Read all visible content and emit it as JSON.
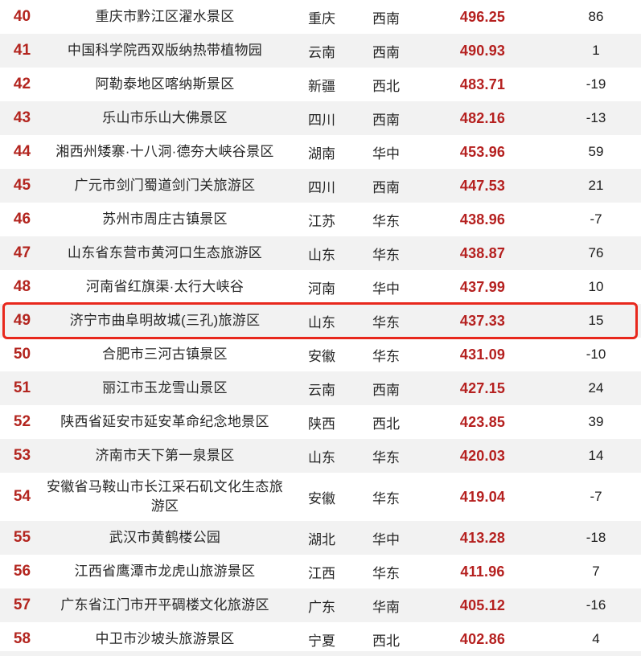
{
  "table": {
    "highlighted_rank": 49,
    "colors": {
      "rank_red": "#b3251f",
      "score_red": "#b5201f",
      "stripe_gray": "#f2f2f2",
      "highlight_border_red": "#e8281d"
    },
    "rows": [
      {
        "rank": 40,
        "name": "重庆市黔江区濯水景区",
        "province": "重庆",
        "region": "西南",
        "score": "496.25",
        "change": "86"
      },
      {
        "rank": 41,
        "name": "中国科学院西双版纳热带植物园",
        "province": "云南",
        "region": "西南",
        "score": "490.93",
        "change": "1"
      },
      {
        "rank": 42,
        "name": "阿勒泰地区喀纳斯景区",
        "province": "新疆",
        "region": "西北",
        "score": "483.71",
        "change": "-19"
      },
      {
        "rank": 43,
        "name": "乐山市乐山大佛景区",
        "province": "四川",
        "region": "西南",
        "score": "482.16",
        "change": "-13"
      },
      {
        "rank": 44,
        "name": "湘西州矮寨·十八洞·德夯大峡谷景区",
        "province": "湖南",
        "region": "华中",
        "score": "453.96",
        "change": "59"
      },
      {
        "rank": 45,
        "name": "广元市剑门蜀道剑门关旅游区",
        "province": "四川",
        "region": "西南",
        "score": "447.53",
        "change": "21"
      },
      {
        "rank": 46,
        "name": "苏州市周庄古镇景区",
        "province": "江苏",
        "region": "华东",
        "score": "438.96",
        "change": "-7"
      },
      {
        "rank": 47,
        "name": "山东省东营市黄河口生态旅游区",
        "province": "山东",
        "region": "华东",
        "score": "438.87",
        "change": "76"
      },
      {
        "rank": 48,
        "name": "河南省红旗渠·太行大峡谷",
        "province": "河南",
        "region": "华中",
        "score": "437.99",
        "change": "10"
      },
      {
        "rank": 49,
        "name": "济宁市曲阜明故城(三孔)旅游区",
        "province": "山东",
        "region": "华东",
        "score": "437.33",
        "change": "15"
      },
      {
        "rank": 50,
        "name": "合肥市三河古镇景区",
        "province": "安徽",
        "region": "华东",
        "score": "431.09",
        "change": "-10"
      },
      {
        "rank": 51,
        "name": "丽江市玉龙雪山景区",
        "province": "云南",
        "region": "西南",
        "score": "427.15",
        "change": "24"
      },
      {
        "rank": 52,
        "name": "陕西省延安市延安革命纪念地景区",
        "province": "陕西",
        "region": "西北",
        "score": "423.85",
        "change": "39"
      },
      {
        "rank": 53,
        "name": "济南市天下第一泉景区",
        "province": "山东",
        "region": "华东",
        "score": "420.03",
        "change": "14"
      },
      {
        "rank": 54,
        "name": "安徽省马鞍山市长江采石矶文化生态旅游区",
        "province": "安徽",
        "region": "华东",
        "score": "419.04",
        "change": "-7"
      },
      {
        "rank": 55,
        "name": "武汉市黄鹤楼公园",
        "province": "湖北",
        "region": "华中",
        "score": "413.28",
        "change": "-18"
      },
      {
        "rank": 56,
        "name": "江西省鹰潭市龙虎山旅游景区",
        "province": "江西",
        "region": "华东",
        "score": "411.96",
        "change": "7"
      },
      {
        "rank": 57,
        "name": "广东省江门市开平碉楼文化旅游区",
        "province": "广东",
        "region": "华南",
        "score": "405.12",
        "change": "-16"
      },
      {
        "rank": 58,
        "name": "中卫市沙坡头旅游景区",
        "province": "宁夏",
        "region": "西北",
        "score": "402.86",
        "change": "4"
      }
    ]
  }
}
